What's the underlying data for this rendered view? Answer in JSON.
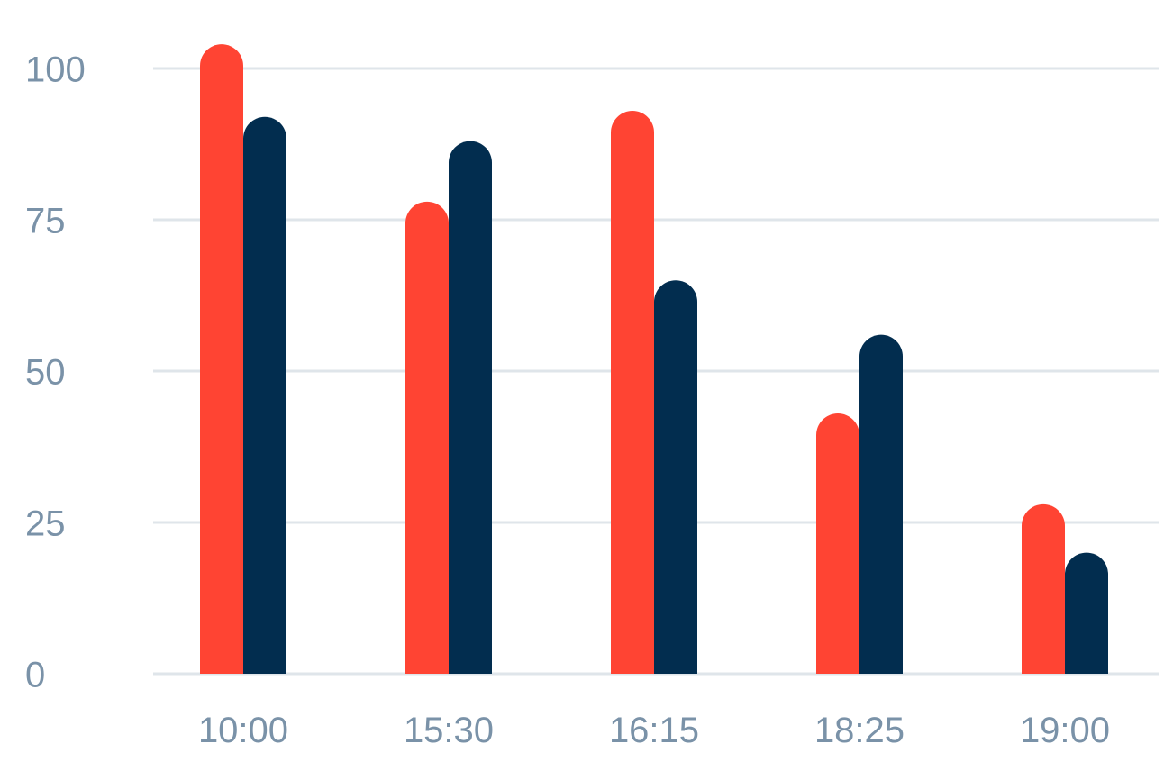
{
  "chart_data": {
    "type": "bar",
    "categories": [
      "10:00",
      "15:30",
      "16:15",
      "18:25",
      "19:00"
    ],
    "series": [
      {
        "values": [
          104,
          78,
          93,
          43,
          28
        ],
        "color": "#ff4433"
      },
      {
        "values": [
          92,
          88,
          65,
          56,
          20
        ],
        "color": "#022d4f"
      }
    ],
    "ylim": [
      0,
      100
    ],
    "yticks": [
      "0",
      "25",
      "50",
      "75",
      "100"
    ],
    "grid": true,
    "legend": "none",
    "axis_label_color": "#7a92a8",
    "grid_color": "#dfe5ea"
  }
}
